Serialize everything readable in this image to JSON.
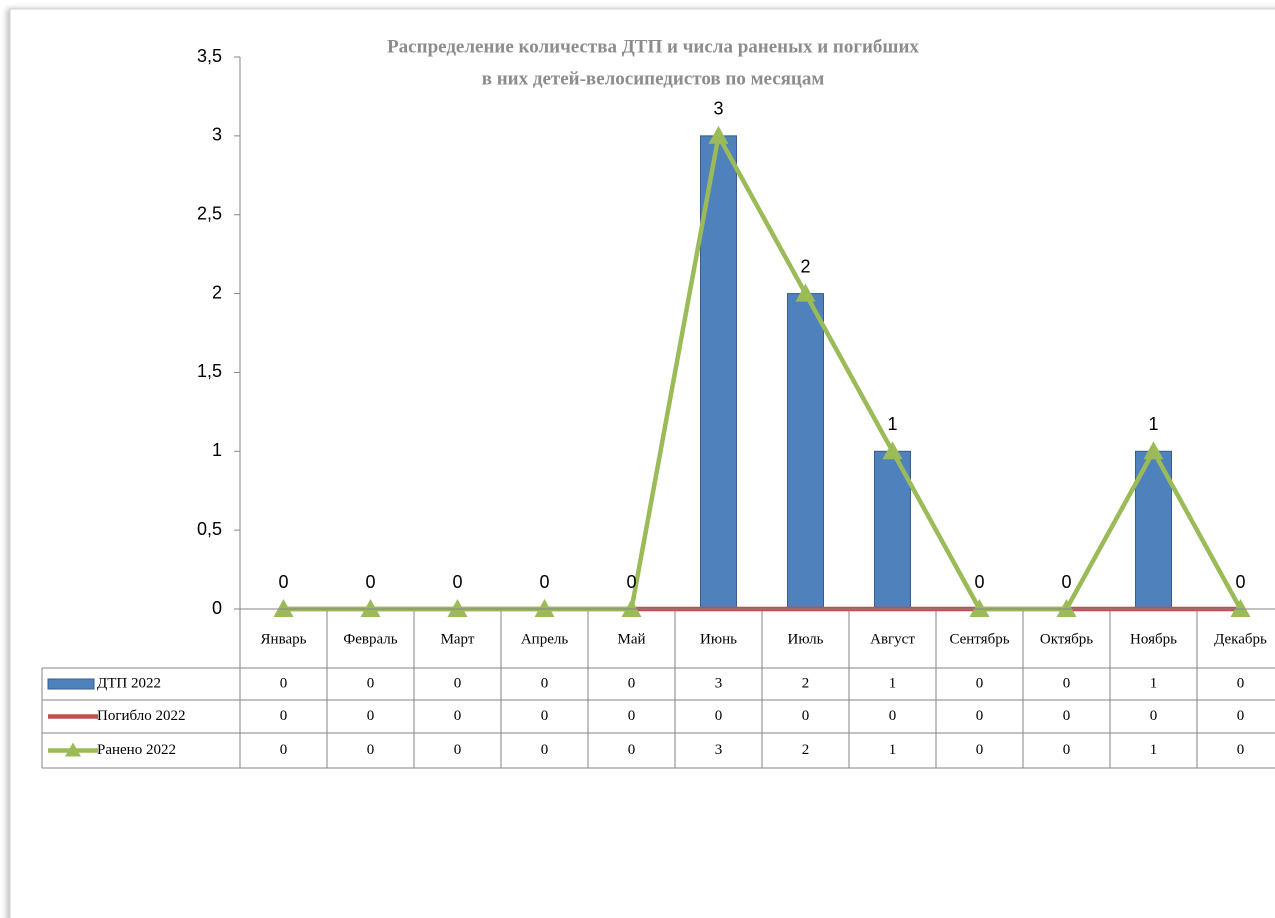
{
  "chart_data": {
    "type": "bar",
    "title": [
      "Распределение количества ДТП и числа раненых и погибших",
      "в них детей-велосипедистов по месяцам"
    ],
    "categories": [
      "Январь",
      "Февраль",
      "Март",
      "Апрель",
      "Май",
      "Июнь",
      "Июль",
      "Август",
      "Сентябрь",
      "Октябрь",
      "Ноябрь",
      "Декабрь"
    ],
    "series": [
      {
        "name": "ДТП 2022",
        "type": "bar",
        "color": "#4f81bd",
        "values": [
          0,
          0,
          0,
          0,
          0,
          3,
          2,
          1,
          0,
          0,
          1,
          0
        ]
      },
      {
        "name": "Погибло 2022",
        "type": "line",
        "color": "#c0504d",
        "values": [
          0,
          0,
          0,
          0,
          0,
          0,
          0,
          0,
          0,
          0,
          0,
          0
        ]
      },
      {
        "name": "Ранено 2022",
        "type": "line",
        "marker": "triangle",
        "color": "#9bbb59",
        "values": [
          0,
          0,
          0,
          0,
          0,
          3,
          2,
          1,
          0,
          0,
          1,
          0
        ]
      }
    ],
    "ylim": [
      0,
      3.5
    ],
    "yticks": [
      0,
      {
        "value": 0.5,
        "label": "0,5"
      },
      1,
      {
        "value": 1.5,
        "label": "1,5"
      },
      2,
      {
        "value": 2.5,
        "label": "2,5"
      },
      3,
      {
        "value": 3.5,
        "label": "3,5"
      }
    ],
    "data_table": true
  }
}
